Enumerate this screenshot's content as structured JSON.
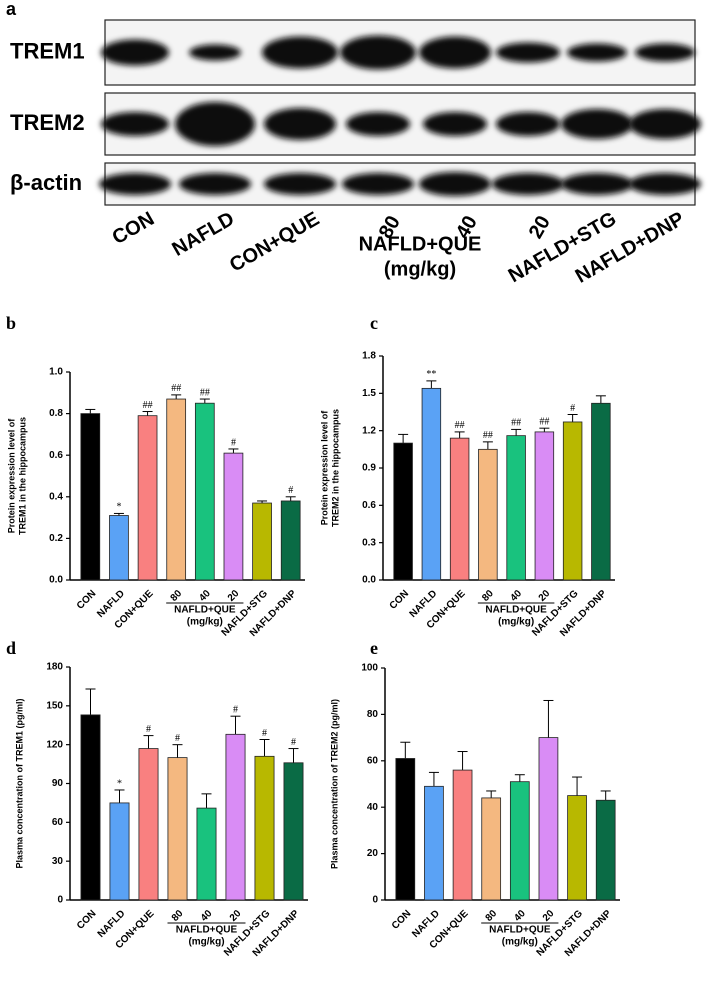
{
  "blot": {
    "panel_label": "a",
    "rows": [
      "TREM1",
      "TREM2",
      "β-actin"
    ],
    "lanes": [
      "CON",
      "NAFLD",
      "CON+QUE",
      "80",
      "40",
      "20",
      "NAFLD+STG",
      "NAFLD+DNP"
    ],
    "group_label": [
      "NAFLD+QUE",
      "(mg/kg)"
    ]
  },
  "chart_data": [
    {
      "type": "bar",
      "panel_label": "b",
      "ylabel": [
        "Protein expression level of",
        "TREM1  in the hippocampus"
      ],
      "categories": [
        "CON",
        "NAFLD",
        "CON+QUE",
        "80",
        "40",
        "20",
        "NAFLD+STG",
        "NAFLD+DNP"
      ],
      "group_label": [
        "NAFLD+QUE",
        "(mg/kg)"
      ],
      "values": [
        0.8,
        0.31,
        0.79,
        0.87,
        0.85,
        0.61,
        0.37,
        0.38
      ],
      "errors": [
        0.02,
        0.01,
        0.02,
        0.02,
        0.02,
        0.02,
        0.01,
        0.02
      ],
      "annotations": [
        null,
        "*",
        "##",
        "##",
        "##",
        "#",
        null,
        "#"
      ],
      "colors": [
        "#000000",
        "#5aa2f5",
        "#f98080",
        "#f4b880",
        "#19c27e",
        "#d98cf5",
        "#b8b800",
        "#0a6b45"
      ],
      "ylim": [
        0,
        1.0
      ],
      "yticks": [
        {
          "value": 0,
          "label": "0.0"
        },
        0.2,
        0.4,
        0.6,
        0.8,
        {
          "value": 1.0,
          "label": "1.0"
        }
      ]
    },
    {
      "type": "bar",
      "panel_label": "c",
      "ylabel": [
        "Protein expression level of",
        "TREM2  in the hippocampus"
      ],
      "categories": [
        "CON",
        "NAFLD",
        "CON+QUE",
        "80",
        "40",
        "20",
        "NAFLD+STG",
        "NAFLD+DNP"
      ],
      "group_label": [
        "NAFLD+QUE",
        "(mg/kg)"
      ],
      "values": [
        1.1,
        1.54,
        1.14,
        1.05,
        1.16,
        1.19,
        1.27,
        1.42
      ],
      "errors": [
        0.07,
        0.06,
        0.05,
        0.06,
        0.05,
        0.03,
        0.06,
        0.06
      ],
      "annotations": [
        null,
        "**",
        "##",
        "##",
        "##",
        "##",
        "#",
        null
      ],
      "colors": [
        "#000000",
        "#5aa2f5",
        "#f98080",
        "#f4b880",
        "#19c27e",
        "#d98cf5",
        "#b8b800",
        "#0a6b45"
      ],
      "ylim": [
        0,
        1.8
      ],
      "yticks": [
        {
          "value": 0,
          "label": "0.0"
        },
        0.3,
        0.6,
        0.9,
        1.2,
        1.5,
        1.8
      ]
    },
    {
      "type": "bar",
      "panel_label": "d",
      "ylabel": [
        "Plasma concentration of TREM1 (pg/ml)"
      ],
      "categories": [
        "CON",
        "NAFLD",
        "CON+QUE",
        "80",
        "40",
        "20",
        "NAFLD+STG",
        "NAFLD+DNP"
      ],
      "group_label": [
        "NAFLD+QUE",
        "(mg/kg)"
      ],
      "values": [
        143,
        75,
        117,
        110,
        71,
        128,
        111,
        106
      ],
      "errors": [
        20,
        10,
        10,
        10,
        11,
        14,
        13,
        11
      ],
      "annotations": [
        null,
        "*",
        "#",
        "#",
        null,
        "#",
        "#",
        "#"
      ],
      "colors": [
        "#000000",
        "#5aa2f5",
        "#f98080",
        "#f4b880",
        "#19c27e",
        "#d98cf5",
        "#b8b800",
        "#0a6b45"
      ],
      "ylim": [
        0,
        180
      ],
      "yticks": [
        0,
        30,
        60,
        90,
        120,
        150,
        180
      ]
    },
    {
      "type": "bar",
      "panel_label": "e",
      "ylabel": [
        "Plasma concentration of TREM2 (pg/ml)"
      ],
      "categories": [
        "CON",
        "NAFLD",
        "CON+QUE",
        "80",
        "40",
        "20",
        "NAFLD+STG",
        "NAFLD+DNP"
      ],
      "group_label": [
        "NAFLD+QUE",
        "(mg/kg)"
      ],
      "values": [
        61,
        49,
        56,
        44,
        51,
        70,
        45,
        43
      ],
      "errors": [
        7,
        6,
        8,
        3,
        3,
        16,
        8,
        4
      ],
      "annotations": [
        null,
        null,
        null,
        null,
        null,
        null,
        null,
        null
      ],
      "colors": [
        "#000000",
        "#5aa2f5",
        "#f98080",
        "#f4b880",
        "#19c27e",
        "#d98cf5",
        "#b8b800",
        "#0a6b45"
      ],
      "ylim": [
        0,
        100
      ],
      "yticks": [
        0,
        20,
        40,
        60,
        80,
        100
      ]
    }
  ]
}
